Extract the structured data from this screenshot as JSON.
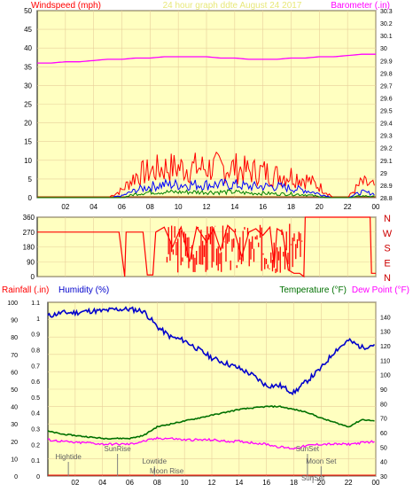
{
  "colors": {
    "background": "#ffffff",
    "plot_bg": "#ffffc0",
    "grid": "#e8cf9a",
    "wind_avg": "#0000ff",
    "wind_gust": "#ff0000",
    "wind_lull": "#008000",
    "barometer": "#ff00ff",
    "direction": "#ff0000",
    "humidity": "#0000cc",
    "temperature": "#007000",
    "dew_point": "#ff00ff",
    "rainfall": "#ff0000",
    "events": "#808080"
  },
  "header": {
    "wind_title": "Windspeed (mph)",
    "date_title": "24 hour graph ddte   August 24 2017",
    "baro_title": "Barometer (.in)"
  },
  "chart_data": [
    {
      "type": "line",
      "name": "windspeed-barometer",
      "x_ticks": [
        "02",
        "04",
        "06",
        "08",
        "10",
        "12",
        "14",
        "16",
        "18",
        "20",
        "22",
        "00"
      ],
      "hours_x": [
        0,
        1,
        2,
        3,
        4,
        5,
        6,
        7,
        8,
        9,
        10,
        11,
        12,
        13,
        14,
        15,
        16,
        17,
        18,
        19,
        20,
        21,
        22,
        23,
        24
      ],
      "ylabel_left": "Windspeed (mph)",
      "ylim_left": [
        0,
        50
      ],
      "yticks_left": [
        0,
        5,
        10,
        15,
        20,
        25,
        30,
        35,
        40,
        45,
        50
      ],
      "ylabel_right": "Barometer (.in)",
      "ylim_right": [
        28.8,
        30.3
      ],
      "yticks_right": [
        "28.8",
        "28.9",
        "29",
        "29.1",
        "29.2",
        "29.3",
        "29.4",
        "29.5",
        "29.6",
        "29.7",
        "29.8",
        "29.9",
        "30",
        "30.1",
        "30.2",
        "30.3"
      ],
      "series": [
        {
          "role": "gust",
          "values": [
            0,
            0,
            0,
            0,
            0,
            0,
            2,
            6,
            7,
            8,
            8,
            8,
            8,
            8,
            8,
            7,
            7,
            6,
            6,
            5,
            3,
            0,
            0,
            4,
            3
          ]
        },
        {
          "role": "average",
          "values": [
            0,
            0,
            0,
            0,
            0,
            0,
            0.5,
            2,
            3,
            3.5,
            3.5,
            3.5,
            3.5,
            3.5,
            3.5,
            3,
            3,
            3,
            2.5,
            2,
            1,
            0,
            0,
            1.5,
            1
          ]
        },
        {
          "role": "lull",
          "values": [
            0,
            0,
            0,
            0,
            0,
            0,
            0,
            1,
            1.5,
            1.5,
            1.5,
            1.5,
            1.5,
            1.5,
            1.5,
            1.2,
            1.2,
            1,
            1,
            0.8,
            0.3,
            0,
            0,
            0.5,
            0.3
          ]
        },
        {
          "role": "barometer",
          "values": [
            29.88,
            29.88,
            29.89,
            29.89,
            29.9,
            29.91,
            29.91,
            29.92,
            29.92,
            29.93,
            29.93,
            29.93,
            29.93,
            29.92,
            29.92,
            29.91,
            29.91,
            29.91,
            29.92,
            29.92,
            29.93,
            29.93,
            29.94,
            29.95,
            29.95
          ]
        }
      ]
    },
    {
      "type": "scatter",
      "name": "wind-direction",
      "ylim": [
        0,
        360
      ],
      "yticks": [
        0,
        90,
        180,
        270,
        360
      ],
      "compass_labels": [
        "N",
        "W",
        "S",
        "E",
        "N"
      ],
      "points": [
        [
          0,
          270
        ],
        [
          5.5,
          270
        ],
        [
          5.8,
          270
        ],
        [
          6.2,
          0
        ],
        [
          6.3,
          270
        ],
        [
          7.5,
          270
        ],
        [
          7.8,
          10
        ],
        [
          8.2,
          10
        ],
        [
          8.4,
          270
        ],
        [
          9.0,
          300
        ],
        [
          9.6,
          180
        ],
        [
          10.2,
          300
        ],
        [
          10.8,
          90
        ],
        [
          11.3,
          300
        ],
        [
          12.0,
          210
        ],
        [
          12.5,
          290
        ],
        [
          13.0,
          160
        ],
        [
          13.5,
          310
        ],
        [
          14.0,
          270
        ],
        [
          14.5,
          120
        ],
        [
          15.0,
          270
        ],
        [
          15.5,
          290
        ],
        [
          16.0,
          250
        ],
        [
          16.5,
          300
        ],
        [
          16.8,
          60
        ],
        [
          17.0,
          290
        ],
        [
          17.4,
          270
        ],
        [
          17.8,
          40
        ],
        [
          18.2,
          20
        ],
        [
          18.6,
          20
        ],
        [
          18.9,
          0
        ],
        [
          19.0,
          360
        ],
        [
          21.5,
          360
        ],
        [
          23.6,
          360
        ],
        [
          23.7,
          20
        ],
        [
          24.0,
          20
        ]
      ]
    },
    {
      "type": "line",
      "name": "humidity-temperature-dewpoint",
      "ylabel_rain": "Rainfall (.in)",
      "ylabel_humidity": "Humidity (%)",
      "ylabel_temperature": "Temperature (°F)",
      "ylabel_dewpoint": "Dew Point (°F)",
      "humidity_ticks": [
        0,
        10,
        20,
        30,
        40,
        50,
        60,
        70,
        80,
        90,
        100
      ],
      "rain_ticks": [
        "0",
        "0.1",
        "0.2",
        "0.3",
        "0.4",
        "0.5",
        "0.6",
        "0.7",
        "0.8",
        "0.9",
        "1",
        "1.1"
      ],
      "temp_ticks": [
        30,
        40,
        50,
        60,
        70,
        80,
        90,
        100,
        110,
        120,
        130,
        140
      ],
      "x_ticks": [
        "02",
        "04",
        "06",
        "08",
        "10",
        "12",
        "14",
        "16",
        "18",
        "20",
        "22",
        "00"
      ],
      "hours_x": [
        0,
        1,
        2,
        3,
        4,
        5,
        6,
        7,
        8,
        9,
        10,
        11,
        12,
        13,
        14,
        15,
        16,
        17,
        18,
        19,
        20,
        21,
        22,
        23,
        24
      ],
      "series": [
        {
          "role": "humidity",
          "values": [
            92,
            94,
            94,
            95,
            95,
            96,
            96,
            95,
            86,
            80,
            78,
            73,
            68,
            65,
            62,
            58,
            52,
            52,
            48,
            55,
            62,
            72,
            78,
            74,
            76
          ]
        },
        {
          "role": "temperature",
          "values": [
            61,
            59,
            58,
            57,
            56,
            56,
            56,
            58,
            64,
            66,
            68,
            70,
            72,
            74,
            76,
            77,
            78,
            78,
            76,
            74,
            70,
            67,
            64,
            69,
            68
          ]
        },
        {
          "role": "dew_point",
          "values": [
            55,
            54,
            53,
            53,
            52,
            52,
            52,
            54,
            56,
            56,
            55,
            55,
            55,
            54,
            54,
            53,
            52,
            50,
            49,
            51,
            52,
            52,
            52,
            53,
            54
          ]
        }
      ],
      "events": [
        {
          "label": "Hightide",
          "hour": 1.5,
          "row": 1
        },
        {
          "label": "SunRise",
          "hour": 5.1,
          "row": 0
        },
        {
          "label": "Lowtide",
          "hour": 7.8,
          "row": 2
        },
        {
          "label": "Moon Rise",
          "hour": 8.7,
          "row": 3
        },
        {
          "label": "SunSet",
          "hour": 19.0,
          "row": 0
        },
        {
          "label": "Moon Set",
          "hour": 20.0,
          "row": 2
        },
        {
          "label": "SunSet",
          "hour": 19.4,
          "row": 4
        }
      ]
    }
  ]
}
